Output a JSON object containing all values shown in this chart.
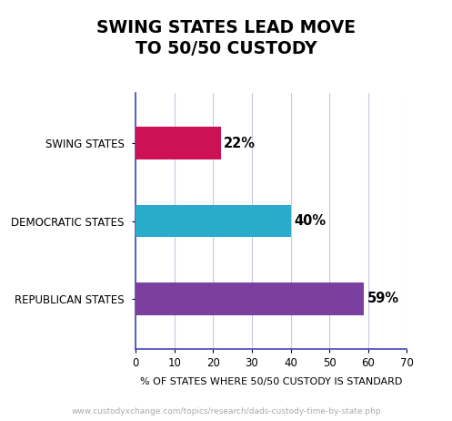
{
  "title": "SWING STATES LEAD MOVE\nTO 50/50 CUSTODY",
  "categories": [
    "REPUBLICAN STATES",
    "DEMOCRATIC STATES",
    "SWING STATES"
  ],
  "values": [
    22,
    40,
    59
  ],
  "colors": [
    "#CC1155",
    "#29ABCC",
    "#7B3FA0"
  ],
  "xlabel": "% OF STATES WHERE 50/50 CUSTODY IS STANDARD",
  "xlim": [
    0,
    70
  ],
  "xticks": [
    0,
    10,
    20,
    30,
    40,
    50,
    60,
    70
  ],
  "value_labels": [
    "22%",
    "40%",
    "59%"
  ],
  "footnote": "www.custodyxchange.com/topics/research/dads-custody-time-by-state.php",
  "background_color": "#FFFFFF",
  "grid_color": "#C8C8E8",
  "spine_color": "#4444BB",
  "title_fontsize": 13.5,
  "label_fontsize": 8.5,
  "xlabel_fontsize": 8,
  "value_fontsize": 10.5,
  "footnote_fontsize": 6.5,
  "bar_height": 0.42
}
